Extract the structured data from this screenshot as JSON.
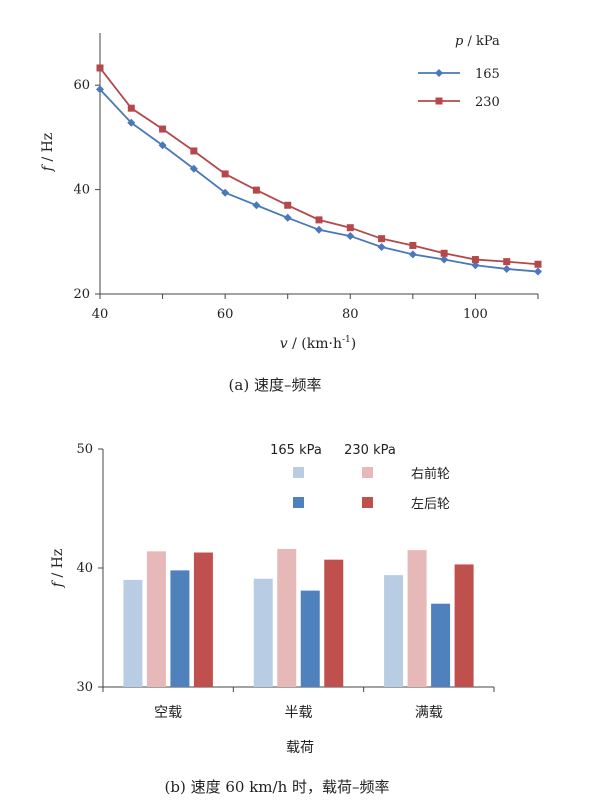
{
  "chart_data": [
    {
      "type": "line",
      "title": "",
      "caption": "(a)    速度–频率",
      "xlabel_var": "v",
      "xlabel_unit": " / (km·h",
      "xlabel_sup": "-1",
      "xlabel_close": ")",
      "ylabel_var": "f",
      "ylabel_unit": " / Hz",
      "xlim": [
        40,
        110
      ],
      "ylim": [
        20,
        70
      ],
      "xticks": [
        40,
        60,
        80,
        100
      ],
      "yticks": [
        20,
        40,
        60
      ],
      "legend_title_var": "p",
      "legend_title_unit": " / kPa",
      "legend_position": "top-right",
      "grid": false,
      "x": [
        40,
        45,
        50,
        55,
        60,
        65,
        70,
        75,
        80,
        85,
        90,
        95,
        100,
        105,
        110
      ],
      "series": [
        {
          "name": "165",
          "color": "#4a78b8",
          "marker": "diamond",
          "values": [
            59.2,
            52.8,
            48.5,
            44.0,
            39.4,
            37.0,
            34.6,
            32.3,
            31.1,
            29.0,
            27.6,
            26.6,
            25.5,
            24.8,
            24.3
          ]
        },
        {
          "name": "230",
          "color": "#b5484a",
          "marker": "square",
          "values": [
            63.3,
            55.6,
            51.6,
            47.4,
            43.0,
            39.9,
            37.0,
            34.2,
            32.7,
            30.6,
            29.3,
            27.8,
            26.6,
            26.2,
            25.7
          ]
        }
      ]
    },
    {
      "type": "bar",
      "title": "",
      "caption": "(b)  速度 60 km/h 时，载荷–频率",
      "xlabel": "载荷",
      "ylabel_var": "f",
      "ylabel_unit": " / Hz",
      "ylim": [
        30,
        50
      ],
      "yticks": [
        30,
        40,
        50
      ],
      "categories": [
        "空载",
        "半载",
        "满载"
      ],
      "legend_headers": [
        "165 kPa",
        "230 kPa"
      ],
      "legend_rows": [
        "右前轮",
        "左后轮"
      ],
      "legend_position": "top",
      "grid": false,
      "series": [
        {
          "name": "165 kPa 右前轮",
          "color": "#b8cce4",
          "values": [
            39.0,
            39.1,
            39.4
          ]
        },
        {
          "name": "230 kPa 右前轮",
          "color": "#e6b9b8",
          "values": [
            41.4,
            41.6,
            41.5
          ]
        },
        {
          "name": "165 kPa 左后轮",
          "color": "#4f81bd",
          "values": [
            39.8,
            38.1,
            37.0
          ]
        },
        {
          "name": "230 kPa 左后轮",
          "color": "#c0504d",
          "values": [
            41.3,
            40.7,
            40.3
          ]
        }
      ]
    }
  ]
}
